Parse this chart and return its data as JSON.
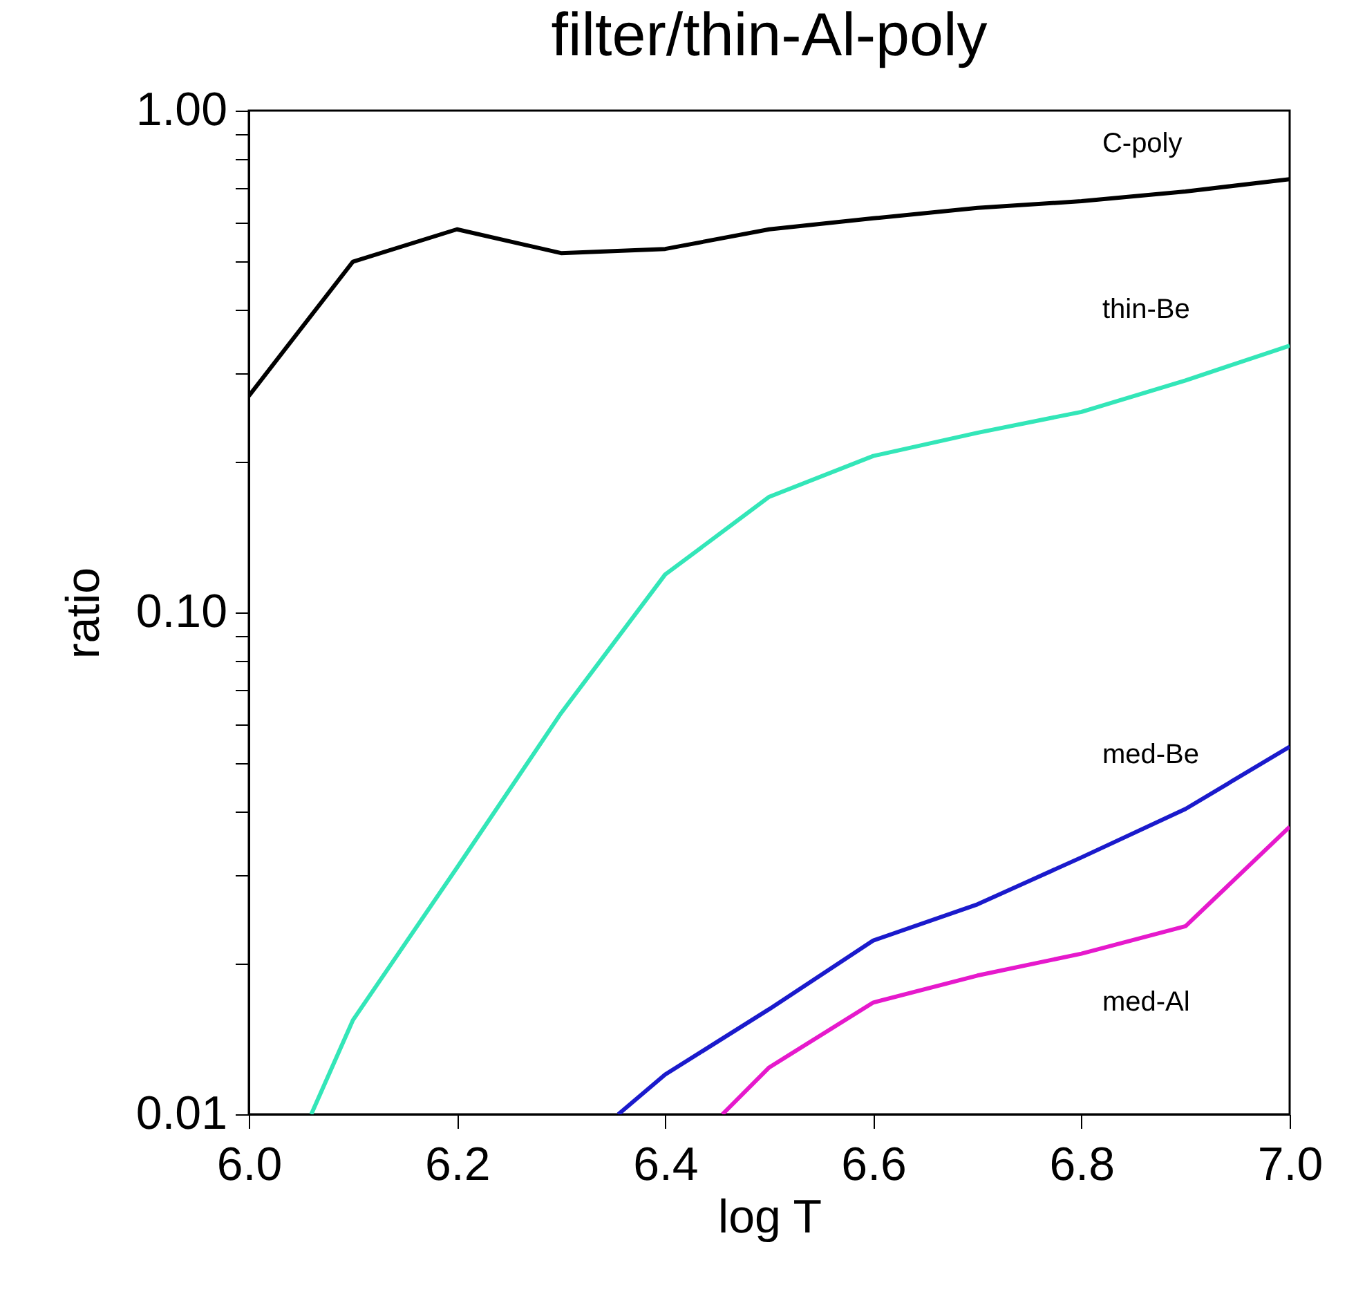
{
  "chart_data": {
    "type": "line",
    "title": "filter/thin-Al-poly",
    "xlabel": "log T",
    "ylabel": "ratio",
    "log": "y",
    "grid": false,
    "legend": false,
    "line_style": "solid",
    "marker": "none",
    "xlim": [
      6.0,
      7.0
    ],
    "xticks": [
      {
        "value": 6.0,
        "label": "6.0"
      },
      {
        "value": 6.2,
        "label": "6.2"
      },
      {
        "value": 6.4,
        "label": "6.4"
      },
      {
        "value": 6.6,
        "label": "6.6"
      },
      {
        "value": 6.8,
        "label": "6.8"
      },
      {
        "value": 7.0,
        "label": "7.0"
      }
    ],
    "ylim": [
      0.01,
      1.0
    ],
    "yticks": [
      {
        "value": 0.01,
        "label": "0.01"
      },
      {
        "value": 0.02,
        "label": null
      },
      {
        "value": 0.03,
        "label": null
      },
      {
        "value": 0.04,
        "label": null
      },
      {
        "value": 0.05,
        "label": null
      },
      {
        "value": 0.06,
        "label": null
      },
      {
        "value": 0.07,
        "label": null
      },
      {
        "value": 0.08,
        "label": null
      },
      {
        "value": 0.09,
        "label": null
      },
      {
        "value": 0.1,
        "label": "0.10"
      },
      {
        "value": 0.2,
        "label": null
      },
      {
        "value": 0.3,
        "label": null
      },
      {
        "value": 0.4,
        "label": null
      },
      {
        "value": 0.5,
        "label": null
      },
      {
        "value": 0.6,
        "label": null
      },
      {
        "value": 0.7,
        "label": null
      },
      {
        "value": 0.8,
        "label": null
      },
      {
        "value": 0.9,
        "label": null
      },
      {
        "value": 1.0,
        "label": "1.00"
      }
    ],
    "series": [
      {
        "name": "C-poly",
        "color": "#000000",
        "x": [
          6.0,
          6.1,
          6.2,
          6.3,
          6.4,
          6.5,
          6.6,
          6.7,
          6.8,
          6.9,
          7.0
        ],
        "values": [
          0.27,
          0.5,
          0.58,
          0.52,
          0.53,
          0.58,
          0.61,
          0.64,
          0.66,
          0.69,
          0.73
        ]
      },
      {
        "name": "thin-Be",
        "color": "#33e6b8",
        "x": [
          6.06,
          6.1,
          6.2,
          6.3,
          6.4,
          6.5,
          6.6,
          6.7,
          6.8,
          6.9,
          7.0
        ],
        "values": [
          0.01,
          0.0154,
          0.031,
          0.063,
          0.119,
          0.17,
          0.205,
          0.228,
          0.251,
          0.29,
          0.34
        ]
      },
      {
        "name": "med-Be",
        "color": "#1a1acc",
        "x": [
          6.355,
          6.4,
          6.5,
          6.6,
          6.7,
          6.8,
          6.9,
          7.0
        ],
        "values": [
          0.01,
          0.012,
          0.0162,
          0.0222,
          0.0262,
          0.0325,
          0.0406,
          0.054
        ]
      },
      {
        "name": "med-Al",
        "color": "#e619cc",
        "x": [
          6.455,
          6.5,
          6.6,
          6.7,
          6.8,
          6.9,
          7.0
        ],
        "values": [
          0.01,
          0.0124,
          0.0167,
          0.0189,
          0.0209,
          0.0237,
          0.0374
        ]
      }
    ]
  }
}
